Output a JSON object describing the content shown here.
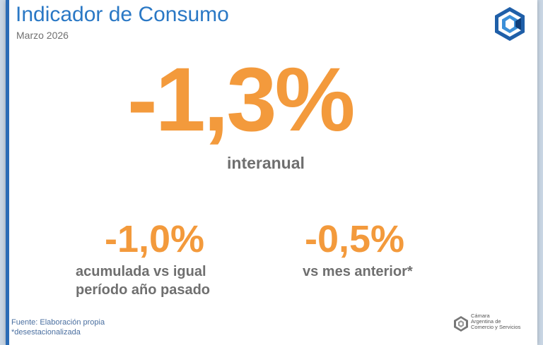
{
  "header": {
    "title": "Indicador de Consumo",
    "subtitle": "Marzo 2026"
  },
  "main": {
    "value": "-1,3%",
    "label": "interanual"
  },
  "secondary": {
    "accumulated": {
      "value": "-1,0%",
      "label_line1": "acumulada vs igual",
      "label_line2": "período año pasado"
    },
    "monthly": {
      "value": "-0,5%",
      "label": "vs mes anterior*"
    }
  },
  "footer": {
    "source": "Fuente: Elaboración propia",
    "note": "*desestacionalizada",
    "org_line1": "Cámara",
    "org_line2": "Argentina de",
    "org_line3": "Comercio y Servicios"
  },
  "colors": {
    "accent_blue": "#2a78c5",
    "orange": "#f39a3c",
    "gray_text": "#6f6f6f"
  },
  "icons": {
    "top_logo": "cac-hexagon-logo-icon",
    "bottom_logo": "cac-small-logo-icon"
  }
}
